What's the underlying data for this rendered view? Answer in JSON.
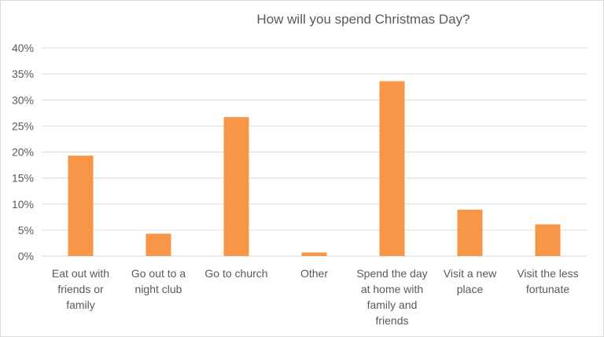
{
  "chart_data": {
    "type": "bar",
    "title": "How will you spend Christmas Day?",
    "xlabel": "",
    "ylabel": "",
    "categories": [
      [
        "Eat out with",
        "friends or",
        "family"
      ],
      [
        "Go out to a",
        "night club"
      ],
      [
        "Go to church"
      ],
      [
        "Other"
      ],
      [
        "Spend the day",
        "at home with",
        "family and",
        "friends"
      ],
      [
        "Visit a new",
        "place"
      ],
      [
        "Visit the less",
        "fortunate"
      ]
    ],
    "values": [
      19.3,
      4.3,
      26.7,
      0.7,
      33.6,
      8.9,
      6.1
    ],
    "ylim": [
      0,
      40
    ],
    "yticks": [
      "0%",
      "5%",
      "10%",
      "15%",
      "20%",
      "25%",
      "30%",
      "35%",
      "40%"
    ],
    "grid": true,
    "legend": "none",
    "bar_color": "#F79646",
    "grid_color": "#D9D9D9",
    "text_color": "#595959"
  }
}
